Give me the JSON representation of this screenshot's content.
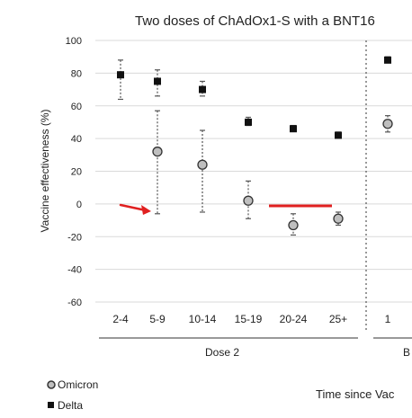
{
  "chart_data": {
    "type": "scatter",
    "title": "Two doses of ChAdOx1-S with a BNT16",
    "ylabel": "Vaccine effectiveness (%)",
    "ylim": [
      -60,
      100
    ],
    "yticks": [
      100,
      80,
      60,
      40,
      20,
      0,
      -20,
      -40,
      -60
    ],
    "categories": [
      "2-4",
      "5-9",
      "10-14",
      "15-19",
      "20-24",
      "25+",
      "1"
    ],
    "groups": [
      {
        "label": "Dose 2",
        "categories": [
          "2-4",
          "5-9",
          "10-14",
          "15-19",
          "20-24",
          "25+"
        ]
      },
      {
        "label": "B",
        "categories": [
          "1"
        ]
      }
    ],
    "xlabel": "Time since Vac",
    "grid": true,
    "legend_placement": "bottom-left",
    "series": [
      {
        "name": "Omicron",
        "marker": "circle",
        "color": "#bfbfbf",
        "values": [
          null,
          32,
          24,
          2,
          -13,
          -9,
          49
        ],
        "lower": [
          null,
          -6,
          -5,
          -9,
          -19,
          -13,
          44
        ],
        "upper": [
          null,
          57,
          45,
          14,
          -6,
          -5,
          54
        ]
      },
      {
        "name": "Delta",
        "marker": "square",
        "color": "#111111",
        "values": [
          79,
          75,
          70,
          50,
          46,
          42,
          88
        ],
        "lower": [
          64,
          66,
          66,
          48,
          45,
          41,
          87
        ],
        "upper": [
          88,
          82,
          75,
          53,
          48,
          44,
          90
        ]
      }
    ],
    "annotations": [
      {
        "kind": "arrow",
        "color": "#e02020"
      },
      {
        "kind": "line",
        "color": "#e02020"
      }
    ]
  }
}
